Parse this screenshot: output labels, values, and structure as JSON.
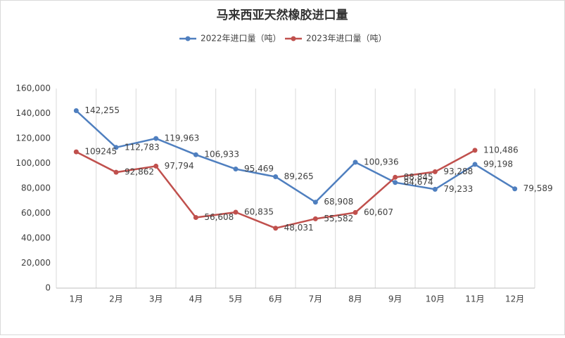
{
  "chart_data": {
    "type": "line",
    "title": "马来西亚天然橡胶进口量",
    "categories": [
      "1月",
      "2月",
      "3月",
      "4月",
      "5月",
      "6月",
      "7月",
      "8月",
      "9月",
      "10月",
      "11月",
      "12月"
    ],
    "series": [
      {
        "name": "2022年进口量（吨）",
        "color": "#4f7fbf",
        "values": [
          142255,
          112783,
          119963,
          106933,
          95469,
          89265,
          68908,
          100936,
          84674,
          79233,
          99198,
          79589
        ],
        "value_labels": [
          "142,255",
          "112,783",
          "119,963",
          "106,933",
          "95,469",
          "89,265",
          "68,908",
          "100,936",
          "84,674",
          "79,233",
          "99,198",
          "79,589"
        ]
      },
      {
        "name": "2023年进口量（吨）",
        "color": "#c0504d",
        "values": [
          109245,
          92862,
          97794,
          56608,
          60835,
          48031,
          55582,
          60607,
          88845,
          93288,
          110486,
          null
        ],
        "value_labels": [
          "109245",
          "92,862",
          "97,794",
          "56,608",
          "60,835",
          "48,031",
          "55,582",
          "60,607",
          "88,845",
          "93,288",
          "110,486",
          null
        ]
      }
    ],
    "ylim": [
      0,
      160000
    ],
    "yticks": [
      0,
      {
        "value": 20000,
        "label": "20,000"
      },
      {
        "value": 40000,
        "label": "40,000"
      },
      {
        "value": 60000,
        "label": "60,000"
      },
      {
        "value": 80000,
        "label": "80,000"
      },
      {
        "value": 100000,
        "label": "100,000"
      },
      {
        "value": 120000,
        "label": "120,000"
      },
      {
        "value": 140000,
        "label": "140,000"
      },
      {
        "value": 160000,
        "label": "160,000"
      }
    ],
    "legend": "top",
    "grid": true
  }
}
